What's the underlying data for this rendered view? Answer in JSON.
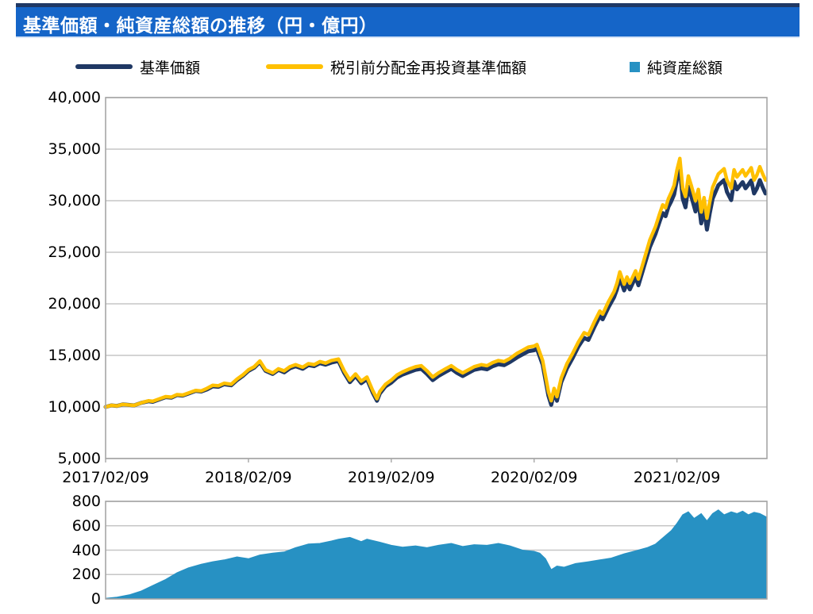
{
  "title": "基準価額・純資産総額の推移（円・億円）",
  "colors": {
    "title_bar_bg": "#1565C8",
    "title_top_border": "#1F3864",
    "nav_line": "#1F3864",
    "reinvested_line": "#FFC000",
    "asset_fill": "#2791C3",
    "gridline": "#C6C6C6",
    "plot_border": "#A6A6A6",
    "text": "#000000"
  },
  "legend": [
    {
      "label": "基準価額",
      "marker": "navy-line"
    },
    {
      "label": "税引前分配金再投資基準価額",
      "marker": "yellow-line"
    },
    {
      "label": "純資産総額",
      "marker": "blue-square"
    }
  ],
  "chart_data": [
    {
      "type": "line",
      "title": "基準価額の推移",
      "unit": "円",
      "grid": true,
      "legend_position": "top",
      "ylim": [
        5000,
        40000
      ],
      "y_ticks": [
        "40,000",
        "35,000",
        "30,000",
        "25,000",
        "20,000",
        "15,000",
        "10,000",
        "5,000"
      ],
      "y_tick_values": [
        40000,
        35000,
        30000,
        25000,
        20000,
        15000,
        10000,
        5000
      ],
      "x_ticks": [
        "2017/02/09",
        "2018/02/09",
        "2019/02/09",
        "2020/02/09",
        "2021/02/09"
      ],
      "x_tick_positions_years": [
        0,
        1,
        2,
        3,
        4
      ],
      "xlim_years": [
        0,
        4.63
      ],
      "t_years": [
        0.0,
        0.04,
        0.08,
        0.12,
        0.16,
        0.2,
        0.25,
        0.3,
        0.33,
        0.38,
        0.42,
        0.46,
        0.5,
        0.54,
        0.58,
        0.63,
        0.67,
        0.71,
        0.75,
        0.79,
        0.83,
        0.88,
        0.92,
        0.96,
        1.0,
        1.04,
        1.08,
        1.12,
        1.17,
        1.21,
        1.25,
        1.29,
        1.33,
        1.38,
        1.42,
        1.46,
        1.5,
        1.54,
        1.58,
        1.63,
        1.67,
        1.71,
        1.75,
        1.79,
        1.83,
        1.87,
        1.9,
        1.92,
        1.96,
        2.0,
        2.04,
        2.08,
        2.13,
        2.17,
        2.21,
        2.25,
        2.29,
        2.33,
        2.38,
        2.42,
        2.46,
        2.5,
        2.54,
        2.58,
        2.63,
        2.67,
        2.71,
        2.75,
        2.79,
        2.83,
        2.88,
        2.92,
        2.96,
        3.0,
        3.02,
        3.06,
        3.08,
        3.1,
        3.12,
        3.14,
        3.16,
        3.19,
        3.23,
        3.27,
        3.31,
        3.35,
        3.38,
        3.42,
        3.46,
        3.48,
        3.52,
        3.56,
        3.58,
        3.6,
        3.63,
        3.65,
        3.67,
        3.71,
        3.73,
        3.77,
        3.81,
        3.85,
        3.88,
        3.9,
        3.92,
        3.94,
        3.96,
        3.98,
        4.0,
        4.02,
        4.04,
        4.06,
        4.08,
        4.1,
        4.13,
        4.15,
        4.17,
        4.19,
        4.21,
        4.23,
        4.25,
        4.29,
        4.33,
        4.35,
        4.38,
        4.4,
        4.42,
        4.46,
        4.48,
        4.5,
        4.52,
        4.54,
        4.56,
        4.58,
        4.6,
        4.62
      ],
      "series": [
        {
          "name": "基準価額",
          "color": "#1F3864",
          "values": [
            10000,
            10150,
            10100,
            10250,
            10200,
            10150,
            10400,
            10550,
            10500,
            10750,
            10950,
            10900,
            11150,
            11100,
            11300,
            11550,
            11500,
            11700,
            12000,
            11950,
            12200,
            12100,
            12600,
            13000,
            13500,
            13800,
            14350,
            13500,
            13200,
            13600,
            13350,
            13750,
            13950,
            13700,
            14050,
            13950,
            14250,
            14100,
            14300,
            14450,
            13300,
            12400,
            13000,
            12300,
            12700,
            11400,
            10600,
            11300,
            12000,
            12350,
            12850,
            13150,
            13400,
            13600,
            13700,
            13200,
            12600,
            13000,
            13400,
            13700,
            13300,
            13000,
            13300,
            13600,
            13750,
            13650,
            13950,
            14150,
            14050,
            14350,
            14800,
            15100,
            15400,
            15500,
            15650,
            14100,
            12600,
            11100,
            10200,
            11400,
            10600,
            12400,
            13750,
            14750,
            15850,
            16700,
            16500,
            17700,
            18800,
            18500,
            19650,
            20650,
            21400,
            22500,
            21300,
            22000,
            21400,
            22600,
            21800,
            23650,
            25500,
            26800,
            28050,
            28800,
            28500,
            29400,
            29950,
            30600,
            32050,
            33100,
            30200,
            29350,
            31350,
            30450,
            28950,
            30050,
            27800,
            29200,
            27200,
            28800,
            30200,
            31500,
            32000,
            30850,
            30050,
            31850,
            31100,
            31800,
            31200,
            31550,
            31950,
            30700,
            31200,
            32000,
            31300,
            30700
          ]
        },
        {
          "name": "税引前分配金再投資基準価額",
          "color": "#FFC000",
          "values": [
            10000,
            10150,
            10100,
            10250,
            10200,
            10150,
            10400,
            10600,
            10550,
            10800,
            11000,
            10950,
            11200,
            11150,
            11350,
            11600,
            11550,
            11800,
            12100,
            12050,
            12300,
            12200,
            12700,
            13100,
            13600,
            13900,
            14450,
            13600,
            13300,
            13700,
            13500,
            13900,
            14100,
            13850,
            14200,
            14100,
            14400,
            14250,
            14500,
            14650,
            13500,
            12600,
            13200,
            12500,
            12900,
            11600,
            10800,
            11500,
            12200,
            12600,
            13100,
            13400,
            13700,
            13900,
            14000,
            13500,
            12900,
            13300,
            13700,
            14000,
            13600,
            13300,
            13600,
            13900,
            14100,
            14000,
            14300,
            14500,
            14400,
            14700,
            15200,
            15500,
            15800,
            15900,
            16050,
            14500,
            13000,
            11500,
            10600,
            11800,
            11000,
            12800,
            14200,
            15200,
            16300,
            17200,
            17000,
            18200,
            19300,
            19000,
            20200,
            21200,
            22000,
            23100,
            21900,
            22600,
            22000,
            23200,
            22400,
            24300,
            26200,
            27500,
            28800,
            29600,
            29300,
            30200,
            30800,
            31500,
            33000,
            34100,
            31200,
            30400,
            32400,
            31500,
            30000,
            31100,
            28900,
            30300,
            28300,
            29900,
            31300,
            32600,
            33100,
            32000,
            31200,
            33000,
            32300,
            33000,
            32400,
            32800,
            33200,
            32000,
            32500,
            33300,
            32600,
            32000
          ]
        }
      ]
    },
    {
      "type": "area",
      "name": "純資産総額",
      "unit": "億円",
      "grid": true,
      "color": "#2791C3",
      "ylim": [
        0,
        800
      ],
      "y_ticks": [
        "800",
        "600",
        "400",
        "200",
        "0"
      ],
      "y_tick_values": [
        800,
        600,
        400,
        200,
        0
      ],
      "xlim_years": [
        0,
        4.63
      ],
      "t_years": [
        0.0,
        0.08,
        0.17,
        0.25,
        0.33,
        0.42,
        0.5,
        0.58,
        0.67,
        0.75,
        0.83,
        0.92,
        1.0,
        1.08,
        1.17,
        1.25,
        1.33,
        1.42,
        1.5,
        1.58,
        1.63,
        1.71,
        1.79,
        1.83,
        1.92,
        2.0,
        2.08,
        2.17,
        2.25,
        2.33,
        2.42,
        2.5,
        2.58,
        2.67,
        2.75,
        2.83,
        2.92,
        3.0,
        3.04,
        3.08,
        3.12,
        3.16,
        3.21,
        3.29,
        3.38,
        3.46,
        3.54,
        3.63,
        3.71,
        3.79,
        3.85,
        3.92,
        3.96,
        4.0,
        4.04,
        4.08,
        4.12,
        4.17,
        4.21,
        4.25,
        4.29,
        4.33,
        4.38,
        4.42,
        4.46,
        4.5,
        4.54,
        4.58,
        4.62
      ],
      "values": [
        5,
        15,
        35,
        65,
        110,
        160,
        215,
        255,
        285,
        305,
        320,
        345,
        330,
        360,
        375,
        385,
        420,
        450,
        455,
        475,
        490,
        505,
        470,
        490,
        465,
        440,
        425,
        435,
        420,
        440,
        455,
        430,
        445,
        440,
        455,
        435,
        400,
        390,
        375,
        330,
        240,
        270,
        260,
        290,
        305,
        320,
        335,
        370,
        395,
        420,
        450,
        520,
        560,
        620,
        690,
        715,
        660,
        700,
        640,
        700,
        730,
        690,
        715,
        700,
        720,
        690,
        710,
        700,
        670
      ]
    }
  ]
}
